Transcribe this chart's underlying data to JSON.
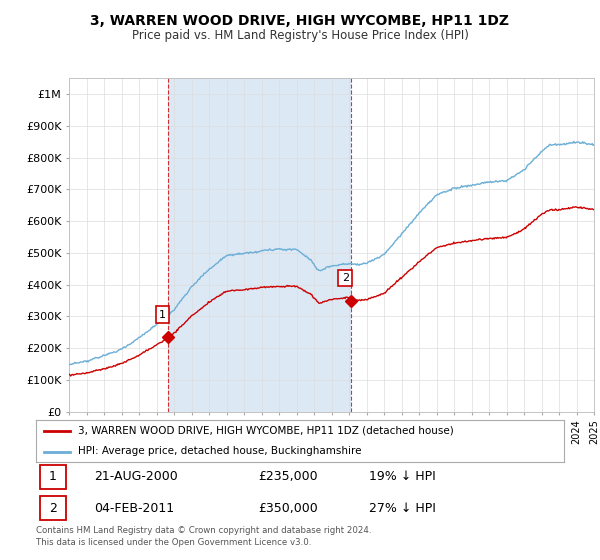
{
  "title": "3, WARREN WOOD DRIVE, HIGH WYCOMBE, HP11 1DZ",
  "subtitle": "Price paid vs. HM Land Registry's House Price Index (HPI)",
  "hpi_color": "#6baed6",
  "price_color": "#cc0000",
  "marker_color": "#cc0000",
  "background_color": "#ffffff",
  "grid_color": "#dddddd",
  "shade_color": "#dce9f5",
  "ylim": [
    0,
    1050000
  ],
  "yticks": [
    0,
    100000,
    200000,
    300000,
    400000,
    500000,
    600000,
    700000,
    800000,
    900000,
    1000000
  ],
  "ytick_labels": [
    "£0",
    "£100K",
    "£200K",
    "£300K",
    "£400K",
    "£500K",
    "£600K",
    "£700K",
    "£800K",
    "£900K",
    "£1M"
  ],
  "transaction1": {
    "date": "21-AUG-2000",
    "price": 235000,
    "label": "1",
    "x": 2000.65
  },
  "transaction2": {
    "date": "04-FEB-2011",
    "price": 350000,
    "label": "2",
    "x": 2011.09
  },
  "legend_line1": "3, WARREN WOOD DRIVE, HIGH WYCOMBE, HP11 1DZ (detached house)",
  "legend_line2": "HPI: Average price, detached house, Buckinghamshire",
  "footnote": "Contains HM Land Registry data © Crown copyright and database right 2024.\nThis data is licensed under the Open Government Licence v3.0.",
  "table": [
    {
      "num": "1",
      "date": "21-AUG-2000",
      "price": "£235,000",
      "hpi": "19% ↓ HPI"
    },
    {
      "num": "2",
      "date": "04-FEB-2011",
      "price": "£350,000",
      "hpi": "27% ↓ HPI"
    }
  ]
}
